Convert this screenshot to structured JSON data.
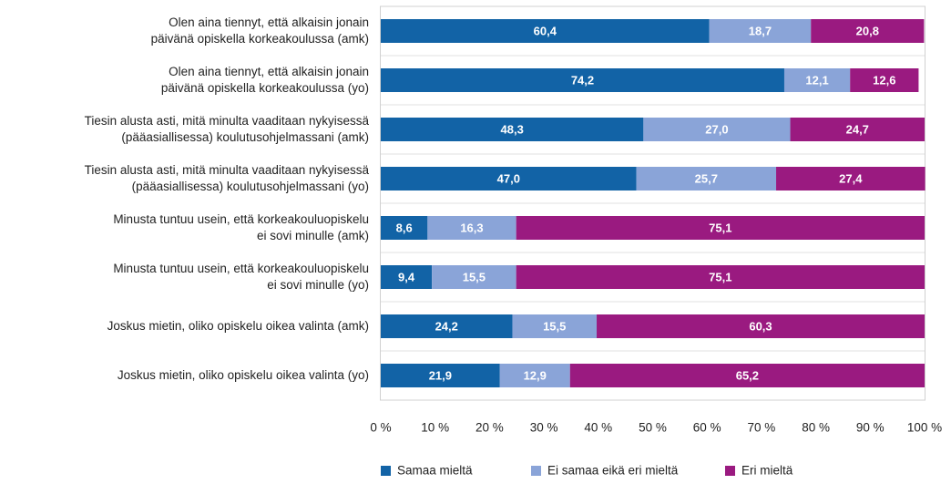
{
  "chart_data": {
    "type": "stacked_barh",
    "categories": [
      [
        "Olen aina tiennyt, että alkaisin jonain",
        "päivänä opiskella korkeakoulussa (amk)"
      ],
      [
        "Olen aina tiennyt, että alkaisin jonain",
        "päivänä opiskella korkeakoulussa (yo)"
      ],
      [
        "Tiesin alusta asti, mitä minulta vaaditaan nykyisessä",
        "(pääasiallisessa) koulutusohjelmassani (amk)"
      ],
      [
        "Tiesin alusta asti, mitä minulta vaaditaan nykyisessä",
        "(pääasiallisessa) koulutusohjelmassani (yo)"
      ],
      [
        "Minusta tuntuu usein, että korkeakouluopiskelu",
        "ei sovi minulle (amk)"
      ],
      [
        "Minusta tuntuu usein, että korkeakouluopiskelu",
        "ei sovi minulle (yo)"
      ],
      [
        "Joskus mietin, oliko opiskelu oikea valinta (amk)"
      ],
      [
        "Joskus mietin, oliko opiskelu oikea valinta (yo)"
      ]
    ],
    "series": [
      {
        "name": "Samaa mieltä",
        "color": "#1263a6",
        "values": [
          60.4,
          74.2,
          48.3,
          47.0,
          8.6,
          9.4,
          24.2,
          21.9
        ],
        "value_labels": [
          "60,4",
          "74,2",
          "48,3",
          "47,0",
          "8,6",
          "9,4",
          "24,2",
          "21,9"
        ]
      },
      {
        "name": "Ei samaa eikä eri mieltä",
        "color": "#8aa4d8",
        "values": [
          18.7,
          12.1,
          27.0,
          25.7,
          16.3,
          15.5,
          15.5,
          12.9
        ],
        "value_labels": [
          "18,7",
          "12,1",
          "27,0",
          "25,7",
          "16,3",
          "15,5",
          "15,5",
          "12,9"
        ]
      },
      {
        "name": "Eri mieltä",
        "color": "#9a1a80",
        "values": [
          20.8,
          12.6,
          24.7,
          27.4,
          75.1,
          75.1,
          60.3,
          65.2
        ],
        "value_labels": [
          "20,8",
          "12,6",
          "24,7",
          "27,4",
          "75,1",
          "75,1",
          "60,3",
          "65,2"
        ]
      }
    ],
    "xlim": [
      0,
      100
    ],
    "xticks": [
      {
        "value": 0,
        "label": "0 %"
      },
      {
        "value": 10,
        "label": "10 %"
      },
      {
        "value": 20,
        "label": "20 %"
      },
      {
        "value": 30,
        "label": "30 %"
      },
      {
        "value": 40,
        "label": "40 %"
      },
      {
        "value": 50,
        "label": "50 %"
      },
      {
        "value": 60,
        "label": "60 %"
      },
      {
        "value": 70,
        "label": "70 %"
      },
      {
        "value": 80,
        "label": "80 %"
      },
      {
        "value": 90,
        "label": "90 %"
      },
      {
        "value": 100,
        "label": "100 %"
      }
    ],
    "legend": "bottom"
  }
}
